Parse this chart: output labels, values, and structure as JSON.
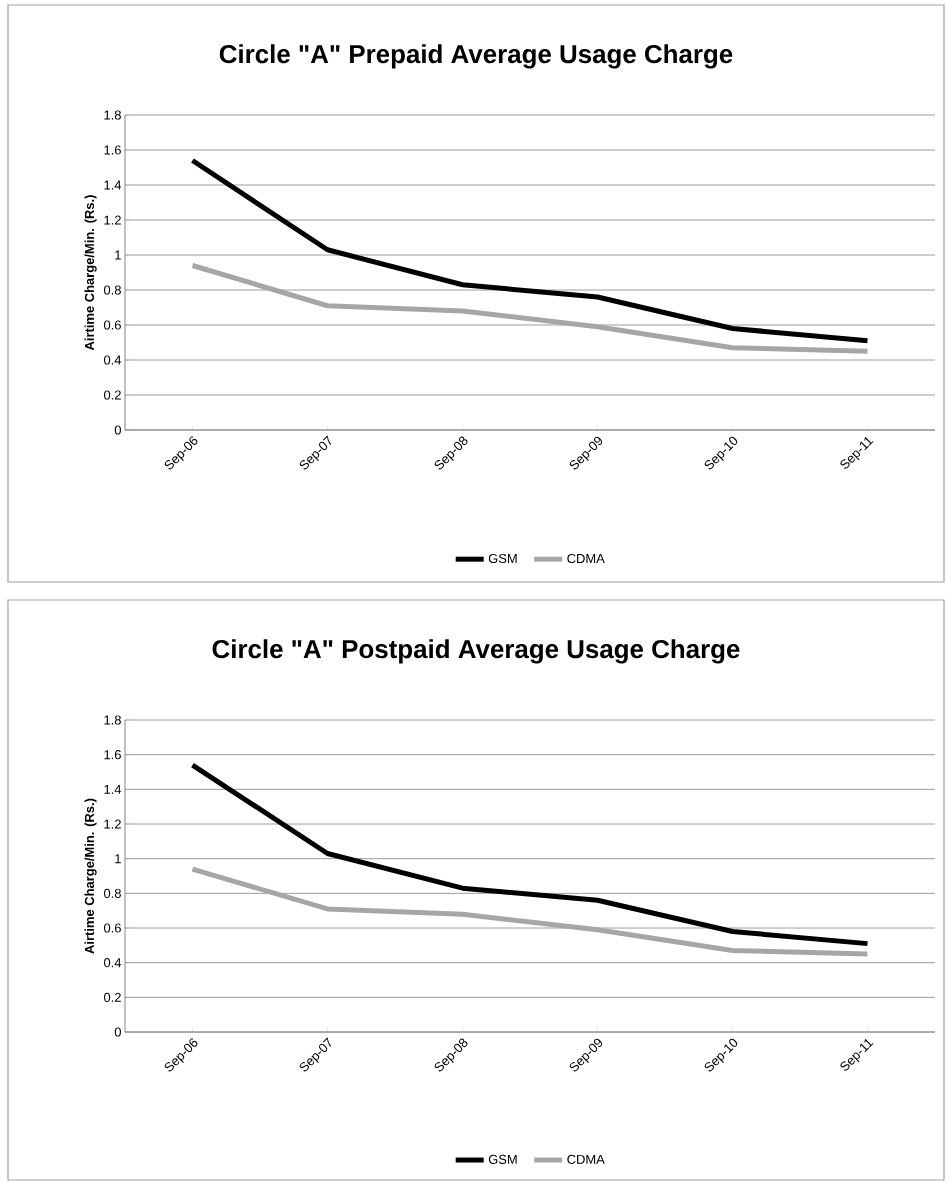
{
  "chart_data": [
    {
      "type": "line",
      "title": "Circle \"A\" Prepaid Average Usage Charge",
      "ylabel": "Airtime Charge/Min. (Rs.)",
      "categories": [
        "Sep-06",
        "Sep-07",
        "Sep-08",
        "Sep-09",
        "Sep-10",
        "Sep-11"
      ],
      "series": [
        {
          "name": "GSM",
          "color": "#000000",
          "values": [
            1.54,
            1.03,
            0.83,
            0.76,
            0.58,
            0.51
          ]
        },
        {
          "name": "CDMA",
          "color": "#a6a6a6",
          "values": [
            0.94,
            0.71,
            0.68,
            0.59,
            0.47,
            0.45
          ]
        }
      ],
      "ylim": [
        0,
        1.8
      ],
      "yticks": [
        0,
        0.2,
        0.4,
        0.6,
        0.8,
        1,
        1.2,
        1.4,
        1.6,
        1.8
      ],
      "grid": "y",
      "legend": "bottom",
      "marker": "none",
      "line_style": "solid"
    },
    {
      "type": "line",
      "title": "Circle \"A\" Postpaid Average Usage Charge",
      "ylabel": "Airtime Charge/Min. (Rs.)",
      "categories": [
        "Sep-06",
        "Sep-07",
        "Sep-08",
        "Sep-09",
        "Sep-10",
        "Sep-11"
      ],
      "series": [
        {
          "name": "GSM",
          "color": "#000000",
          "values": [
            1.54,
            1.03,
            0.83,
            0.76,
            0.58,
            0.51
          ]
        },
        {
          "name": "CDMA",
          "color": "#a6a6a6",
          "values": [
            0.94,
            0.71,
            0.68,
            0.59,
            0.47,
            0.45
          ]
        }
      ],
      "ylim": [
        0,
        1.8
      ],
      "yticks": [
        0,
        0.2,
        0.4,
        0.6,
        0.8,
        1,
        1.2,
        1.4,
        1.6,
        1.8
      ],
      "grid": "y",
      "legend": "bottom",
      "marker": "none",
      "line_style": "solid"
    }
  ]
}
